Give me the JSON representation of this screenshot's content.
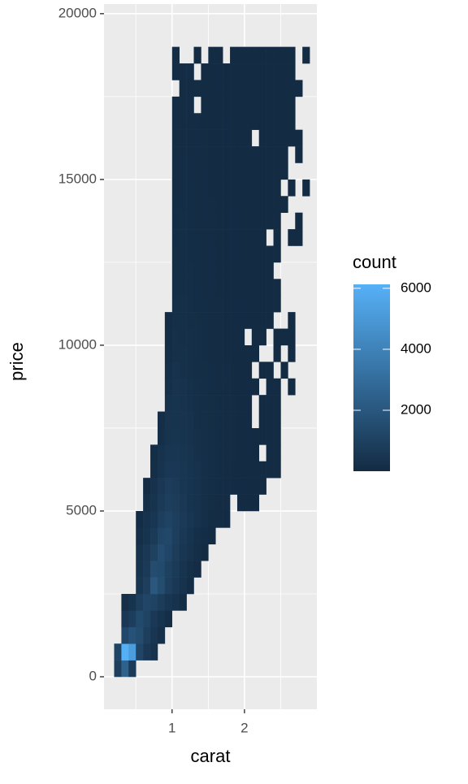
{
  "chart_data": {
    "type": "bin2d",
    "x_label": "carat",
    "y_label": "price",
    "legend_title": "count",
    "xlim": [
      0.06,
      3.0
    ],
    "ylim": [
      -980,
      20290
    ],
    "xticks": [
      1,
      2
    ],
    "yticks": [
      0,
      5000,
      10000,
      15000,
      20000
    ],
    "xminor": [
      0.5,
      1.5,
      2.5
    ],
    "yminor": [
      2500,
      7500,
      12500,
      17500
    ],
    "grid": true,
    "legend": "right",
    "fill_low": "#132B43",
    "fill_high": "#56B1F7",
    "fill_lim": [
      1,
      6130
    ],
    "fill_ticks": [
      2000,
      4000,
      6000
    ],
    "x_bins": [
      0.2,
      0.3,
      0.4,
      0.5,
      0.6,
      0.7,
      0.8,
      0.9,
      1.0,
      1.1,
      1.2,
      1.3,
      1.4,
      1.5,
      1.6,
      1.7,
      1.8,
      1.9,
      2.0,
      2.1,
      2.2,
      2.3,
      2.4,
      2.5,
      2.6,
      2.7,
      2.8,
      2.9,
      3.0
    ],
    "y_bins": [
      0,
      500,
      1000,
      1500,
      2000,
      2500,
      3000,
      3500,
      4000,
      4500,
      5000,
      5500,
      6000,
      6500,
      7000,
      7500,
      8000,
      8500,
      9000,
      9500,
      10000,
      10500,
      11000,
      11500,
      12000,
      12500,
      13000,
      13500,
      14000,
      14500,
      15000,
      15500,
      16000,
      16500,
      17000,
      17500,
      18000,
      18500,
      19000
    ],
    "counts": [
      [
        900,
        2500,
        700,
        null,
        null,
        null,
        null,
        null,
        null,
        null,
        null,
        null,
        null,
        null,
        null,
        null,
        null,
        null,
        null,
        null,
        null,
        null,
        null,
        null,
        null,
        null,
        null,
        null
      ],
      [
        1100,
        6100,
        5200,
        1200,
        600,
        300,
        null,
        null,
        null,
        null,
        null,
        null,
        null,
        null,
        null,
        null,
        null,
        null,
        null,
        null,
        null,
        null,
        null,
        null,
        null,
        null,
        null,
        null
      ],
      [
        null,
        1300,
        1800,
        1500,
        900,
        500,
        250,
        null,
        null,
        null,
        null,
        null,
        null,
        null,
        null,
        null,
        null,
        null,
        null,
        null,
        null,
        null,
        null,
        null,
        null,
        null,
        null,
        null
      ],
      [
        null,
        600,
        900,
        1400,
        1100,
        600,
        400,
        150,
        null,
        null,
        null,
        null,
        null,
        null,
        null,
        null,
        null,
        null,
        null,
        null,
        null,
        null,
        null,
        null,
        null,
        null,
        null,
        null
      ],
      [
        null,
        200,
        400,
        900,
        1200,
        1100,
        800,
        500,
        300,
        100,
        null,
        null,
        null,
        null,
        null,
        null,
        null,
        null,
        null,
        null,
        null,
        null,
        null,
        null,
        null,
        null,
        null,
        null
      ],
      [
        null,
        null,
        null,
        500,
        900,
        2000,
        1500,
        900,
        600,
        300,
        100,
        null,
        null,
        null,
        null,
        null,
        null,
        null,
        null,
        null,
        null,
        null,
        null,
        null,
        null,
        null,
        null,
        null
      ],
      [
        null,
        null,
        null,
        400,
        700,
        1500,
        1400,
        1000,
        700,
        400,
        200,
        60,
        null,
        null,
        null,
        null,
        null,
        null,
        null,
        null,
        null,
        null,
        null,
        null,
        null,
        null,
        null,
        null
      ],
      [
        null,
        null,
        null,
        300,
        600,
        1000,
        1500,
        1200,
        800,
        500,
        300,
        150,
        40,
        null,
        null,
        null,
        null,
        null,
        null,
        null,
        null,
        null,
        null,
        null,
        null,
        null,
        null,
        null
      ],
      [
        null,
        null,
        null,
        200,
        400,
        700,
        1200,
        1300,
        900,
        600,
        400,
        200,
        100,
        30,
        null,
        null,
        null,
        null,
        null,
        null,
        null,
        null,
        null,
        null,
        null,
        null,
        null,
        null
      ],
      [
        null,
        null,
        null,
        100,
        300,
        500,
        900,
        1100,
        900,
        700,
        500,
        300,
        200,
        100,
        50,
        20,
        null,
        null,
        null,
        null,
        null,
        null,
        null,
        null,
        null,
        null,
        null,
        null
      ],
      [
        null,
        null,
        null,
        null,
        200,
        400,
        700,
        900,
        800,
        600,
        400,
        300,
        200,
        120,
        80,
        50,
        null,
        15,
        8,
        5,
        null,
        null,
        null,
        null,
        null,
        null,
        null,
        null
      ],
      [
        null,
        null,
        null,
        null,
        30,
        300,
        600,
        800,
        700,
        500,
        400,
        300,
        200,
        150,
        100,
        60,
        40,
        20,
        10,
        8,
        5,
        null,
        null,
        null,
        null,
        null,
        null,
        null
      ],
      [
        null,
        null,
        null,
        null,
        null,
        200,
        400,
        600,
        600,
        500,
        400,
        300,
        200,
        150,
        100,
        70,
        40,
        25,
        15,
        10,
        6,
        4,
        3,
        null,
        null,
        null,
        null,
        null
      ],
      [
        null,
        null,
        null,
        null,
        null,
        150,
        300,
        500,
        500,
        450,
        350,
        250,
        200,
        150,
        100,
        70,
        50,
        30,
        20,
        12,
        null,
        5,
        3,
        null,
        null,
        null,
        null,
        null
      ],
      [
        null,
        null,
        null,
        null,
        null,
        null,
        200,
        400,
        450,
        400,
        300,
        250,
        200,
        150,
        100,
        80,
        50,
        35,
        20,
        15,
        8,
        5,
        3,
        null,
        null,
        null,
        null,
        null
      ],
      [
        null,
        null,
        null,
        null,
        null,
        null,
        150,
        350,
        400,
        350,
        300,
        200,
        180,
        120,
        90,
        70,
        50,
        30,
        20,
        null,
        8,
        5,
        3,
        null,
        null,
        null,
        null,
        null
      ],
      [
        null,
        null,
        null,
        null,
        null,
        null,
        null,
        300,
        400,
        300,
        250,
        200,
        150,
        120,
        90,
        70,
        50,
        35,
        20,
        null,
        10,
        6,
        4,
        null,
        null,
        null,
        null,
        null
      ],
      [
        null,
        null,
        null,
        null,
        null,
        null,
        null,
        250,
        350,
        300,
        220,
        180,
        130,
        100,
        80,
        60,
        45,
        30,
        20,
        15,
        null,
        5,
        4,
        null,
        3,
        null,
        null,
        null
      ],
      [
        null,
        null,
        null,
        null,
        null,
        null,
        null,
        200,
        300,
        250,
        200,
        150,
        120,
        90,
        70,
        55,
        40,
        25,
        18,
        null,
        8,
        5,
        null,
        3,
        null,
        null,
        null,
        null
      ],
      [
        null,
        null,
        null,
        null,
        null,
        null,
        null,
        150,
        250,
        220,
        180,
        140,
        110,
        80,
        60,
        45,
        35,
        25,
        15,
        10,
        null,
        null,
        4,
        null,
        2,
        null,
        null,
        null
      ],
      [
        null,
        null,
        null,
        null,
        null,
        null,
        null,
        100,
        250,
        200,
        170,
        130,
        100,
        80,
        60,
        40,
        30,
        20,
        null,
        10,
        6,
        null,
        4,
        3,
        2,
        null,
        null,
        null
      ],
      [
        null,
        null,
        null,
        null,
        null,
        null,
        null,
        60,
        200,
        180,
        150,
        120,
        90,
        70,
        55,
        40,
        30,
        20,
        15,
        10,
        7,
        5,
        null,
        null,
        3,
        null,
        null,
        null
      ],
      [
        null,
        null,
        null,
        null,
        null,
        null,
        null,
        null,
        180,
        170,
        140,
        110,
        90,
        70,
        50,
        40,
        30,
        20,
        15,
        10,
        7,
        5,
        4,
        null,
        null,
        null,
        null,
        null
      ],
      [
        null,
        null,
        null,
        null,
        null,
        null,
        null,
        null,
        150,
        160,
        130,
        100,
        80,
        60,
        45,
        35,
        25,
        18,
        12,
        9,
        6,
        4,
        3,
        null,
        null,
        null,
        null,
        null
      ],
      [
        null,
        null,
        null,
        null,
        null,
        null,
        null,
        null,
        130,
        150,
        120,
        100,
        80,
        60,
        45,
        35,
        25,
        18,
        12,
        9,
        6,
        4,
        null,
        null,
        null,
        null,
        null,
        null
      ],
      [
        null,
        null,
        null,
        null,
        null,
        null,
        null,
        null,
        120,
        140,
        110,
        90,
        70,
        55,
        40,
        30,
        22,
        16,
        11,
        8,
        5,
        3,
        2,
        null,
        null,
        null,
        null,
        null
      ],
      [
        null,
        null,
        null,
        null,
        null,
        null,
        null,
        null,
        100,
        130,
        110,
        90,
        70,
        55,
        40,
        30,
        22,
        16,
        11,
        8,
        5,
        null,
        3,
        null,
        2,
        2,
        null,
        null
      ],
      [
        null,
        null,
        null,
        null,
        null,
        null,
        null,
        null,
        100,
        120,
        100,
        80,
        65,
        50,
        38,
        28,
        20,
        15,
        10,
        7,
        5,
        4,
        3,
        null,
        null,
        2,
        null,
        null
      ],
      [
        null,
        null,
        null,
        null,
        null,
        null,
        null,
        null,
        90,
        110,
        95,
        80,
        60,
        48,
        36,
        26,
        19,
        14,
        10,
        7,
        5,
        4,
        3,
        2,
        null,
        null,
        null,
        null
      ],
      [
        null,
        null,
        null,
        null,
        null,
        null,
        null,
        null,
        85,
        100,
        90,
        75,
        58,
        45,
        34,
        25,
        18,
        13,
        9,
        6,
        4,
        3,
        2,
        null,
        2,
        null,
        2,
        null
      ],
      [
        null,
        null,
        null,
        null,
        null,
        null,
        null,
        null,
        80,
        95,
        85,
        70,
        55,
        42,
        32,
        24,
        17,
        12,
        9,
        6,
        4,
        3,
        2,
        2,
        null,
        null,
        null,
        null
      ],
      [
        null,
        null,
        null,
        null,
        null,
        null,
        null,
        null,
        75,
        90,
        80,
        66,
        52,
        40,
        30,
        22,
        16,
        11,
        8,
        5,
        4,
        3,
        2,
        2,
        null,
        2,
        null,
        null
      ],
      [
        null,
        null,
        null,
        null,
        null,
        null,
        null,
        null,
        70,
        85,
        75,
        62,
        48,
        38,
        28,
        20,
        15,
        10,
        7,
        null,
        4,
        3,
        2,
        2,
        2,
        2,
        null,
        null
      ],
      [
        null,
        null,
        null,
        null,
        null,
        null,
        null,
        null,
        65,
        80,
        70,
        58,
        45,
        35,
        26,
        19,
        14,
        9,
        7,
        5,
        4,
        3,
        2,
        2,
        2,
        null,
        null,
        null
      ],
      [
        null,
        null,
        null,
        null,
        null,
        null,
        null,
        null,
        60,
        75,
        65,
        null,
        42,
        33,
        24,
        18,
        13,
        9,
        6,
        5,
        3,
        3,
        2,
        2,
        2,
        null,
        null,
        null
      ],
      [
        null,
        null,
        null,
        null,
        null,
        null,
        null,
        null,
        null,
        70,
        60,
        50,
        40,
        30,
        22,
        17,
        12,
        8,
        6,
        4,
        3,
        3,
        2,
        2,
        2,
        2,
        null,
        null
      ],
      [
        null,
        null,
        null,
        null,
        null,
        null,
        null,
        null,
        55,
        65,
        55,
        null,
        36,
        28,
        20,
        15,
        11,
        8,
        5,
        4,
        3,
        2,
        2,
        2,
        2,
        null,
        null,
        null
      ],
      [
        null,
        null,
        null,
        null,
        null,
        null,
        null,
        null,
        50,
        null,
        null,
        45,
        null,
        25,
        18,
        null,
        10,
        7,
        5,
        4,
        3,
        2,
        2,
        2,
        2,
        null,
        2,
        null
      ]
    ]
  }
}
